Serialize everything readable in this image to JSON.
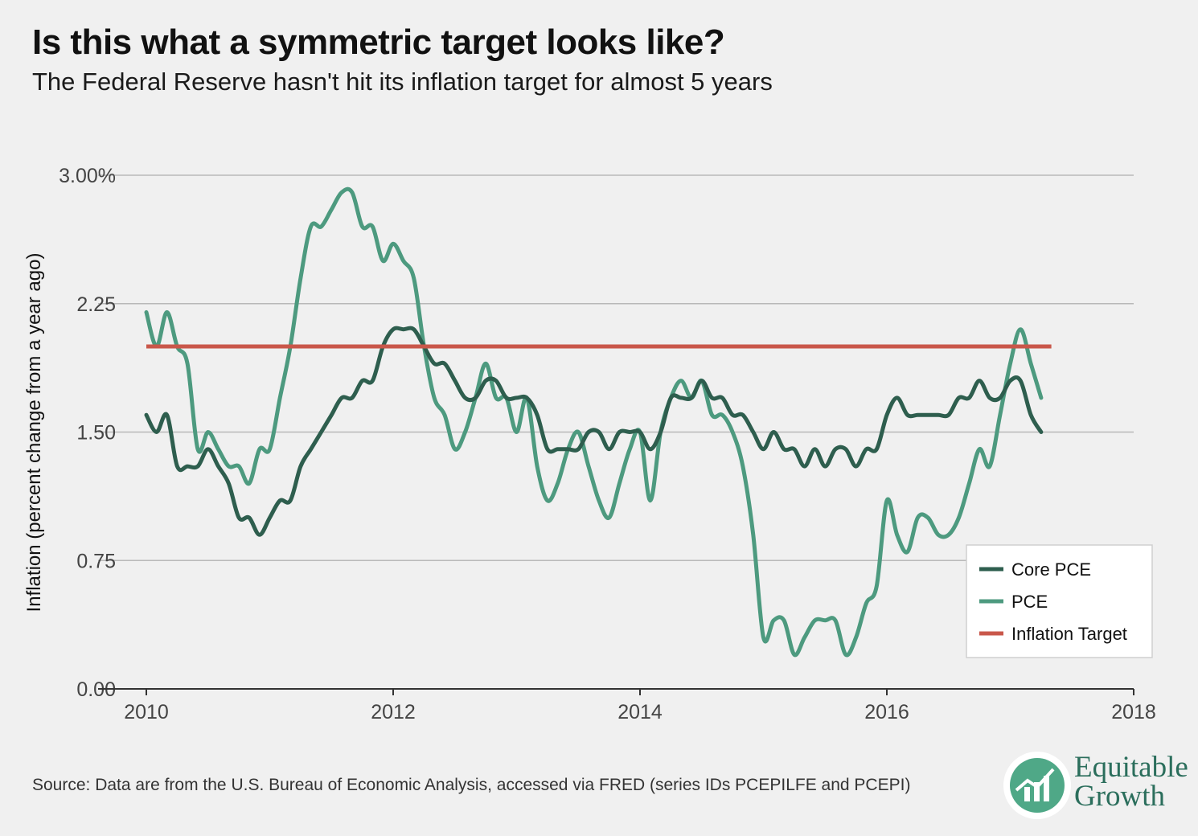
{
  "header": {
    "title": "Is this what a symmetric target looks like?",
    "subtitle": "The Federal Reserve hasn't hit its inflation target for almost 5 years"
  },
  "footer": {
    "source": "Source: Data are from the U.S. Bureau of Economic Analysis, accessed via FRED (series IDs PCEPILFE and PCEPI)"
  },
  "logo": {
    "line1": "Equitable",
    "line2": "Growth",
    "colors": {
      "circle": "#4fa887",
      "bars": "#ffffff"
    }
  },
  "chart_data": {
    "type": "line",
    "title": "Is this what a symmetric target looks like?",
    "subtitle": "The Federal Reserve hasn't hit its inflation target for almost 5 years",
    "xlabel": "",
    "ylabel": "Inflation (percent change from a year ago)",
    "xlim": [
      2010,
      2018
    ],
    "ylim": [
      0,
      3
    ],
    "x_ticks": [
      2010,
      2012,
      2014,
      2016,
      2018
    ],
    "x_tick_labels": [
      "2010",
      "2012",
      "2014",
      "2016",
      "2018"
    ],
    "y_ticks": [
      0,
      0.75,
      1.5,
      2.25,
      3.0
    ],
    "y_tick_labels": [
      "0.00",
      "0.75",
      "1.50",
      "2.25",
      "3.00%"
    ],
    "grid": "horizontal",
    "legend_position": "bottom-right",
    "series": [
      {
        "name": "Core PCE",
        "color": "#2e5e4e",
        "x": [
          2010.0,
          2010.083,
          2010.167,
          2010.25,
          2010.333,
          2010.417,
          2010.5,
          2010.583,
          2010.667,
          2010.75,
          2010.833,
          2010.917,
          2011.0,
          2011.083,
          2011.167,
          2011.25,
          2011.333,
          2011.417,
          2011.5,
          2011.583,
          2011.667,
          2011.75,
          2011.833,
          2011.917,
          2012.0,
          2012.083,
          2012.167,
          2012.25,
          2012.333,
          2012.417,
          2012.5,
          2012.583,
          2012.667,
          2012.75,
          2012.833,
          2012.917,
          2013.0,
          2013.083,
          2013.167,
          2013.25,
          2013.333,
          2013.417,
          2013.5,
          2013.583,
          2013.667,
          2013.75,
          2013.833,
          2013.917,
          2014.0,
          2014.083,
          2014.167,
          2014.25,
          2014.333,
          2014.417,
          2014.5,
          2014.583,
          2014.667,
          2014.75,
          2014.833,
          2014.917,
          2015.0,
          2015.083,
          2015.167,
          2015.25,
          2015.333,
          2015.417,
          2015.5,
          2015.583,
          2015.667,
          2015.75,
          2015.833,
          2015.917,
          2016.0,
          2016.083,
          2016.167,
          2016.25,
          2016.333,
          2016.417,
          2016.5,
          2016.583,
          2016.667,
          2016.75,
          2016.833,
          2016.917,
          2017.0,
          2017.083,
          2017.167,
          2017.25
        ],
        "values": [
          1.6,
          1.5,
          1.6,
          1.3,
          1.3,
          1.3,
          1.4,
          1.3,
          1.2,
          1.0,
          1.0,
          0.9,
          1.0,
          1.1,
          1.1,
          1.3,
          1.4,
          1.5,
          1.6,
          1.7,
          1.7,
          1.8,
          1.8,
          2.0,
          2.1,
          2.1,
          2.1,
          2.0,
          1.9,
          1.9,
          1.8,
          1.7,
          1.7,
          1.8,
          1.8,
          1.7,
          1.7,
          1.7,
          1.6,
          1.4,
          1.4,
          1.4,
          1.4,
          1.5,
          1.5,
          1.4,
          1.5,
          1.5,
          1.5,
          1.4,
          1.5,
          1.7,
          1.7,
          1.7,
          1.8,
          1.7,
          1.7,
          1.6,
          1.6,
          1.5,
          1.4,
          1.5,
          1.4,
          1.4,
          1.3,
          1.4,
          1.3,
          1.4,
          1.4,
          1.3,
          1.4,
          1.4,
          1.6,
          1.7,
          1.6,
          1.6,
          1.6,
          1.6,
          1.6,
          1.7,
          1.7,
          1.8,
          1.7,
          1.7,
          1.8,
          1.8,
          1.6,
          1.5
        ]
      },
      {
        "name": "PCE",
        "color": "#4d9a7f",
        "x": [
          2010.0,
          2010.083,
          2010.167,
          2010.25,
          2010.333,
          2010.417,
          2010.5,
          2010.583,
          2010.667,
          2010.75,
          2010.833,
          2010.917,
          2011.0,
          2011.083,
          2011.167,
          2011.25,
          2011.333,
          2011.417,
          2011.5,
          2011.583,
          2011.667,
          2011.75,
          2011.833,
          2011.917,
          2012.0,
          2012.083,
          2012.167,
          2012.25,
          2012.333,
          2012.417,
          2012.5,
          2012.583,
          2012.667,
          2012.75,
          2012.833,
          2012.917,
          2013.0,
          2013.083,
          2013.167,
          2013.25,
          2013.333,
          2013.417,
          2013.5,
          2013.583,
          2013.667,
          2013.75,
          2013.833,
          2013.917,
          2014.0,
          2014.083,
          2014.167,
          2014.25,
          2014.333,
          2014.417,
          2014.5,
          2014.583,
          2014.667,
          2014.75,
          2014.833,
          2014.917,
          2015.0,
          2015.083,
          2015.167,
          2015.25,
          2015.333,
          2015.417,
          2015.5,
          2015.583,
          2015.667,
          2015.75,
          2015.833,
          2015.917,
          2016.0,
          2016.083,
          2016.167,
          2016.25,
          2016.333,
          2016.417,
          2016.5,
          2016.583,
          2016.667,
          2016.75,
          2016.833,
          2016.917,
          2017.0,
          2017.083,
          2017.167,
          2017.25
        ],
        "values": [
          2.2,
          2.0,
          2.2,
          2.0,
          1.9,
          1.4,
          1.5,
          1.4,
          1.3,
          1.3,
          1.2,
          1.4,
          1.4,
          1.7,
          2.0,
          2.4,
          2.7,
          2.7,
          2.8,
          2.9,
          2.9,
          2.7,
          2.7,
          2.5,
          2.6,
          2.5,
          2.4,
          2.0,
          1.7,
          1.6,
          1.4,
          1.5,
          1.7,
          1.9,
          1.7,
          1.7,
          1.5,
          1.7,
          1.3,
          1.1,
          1.2,
          1.4,
          1.5,
          1.3,
          1.1,
          1.0,
          1.2,
          1.4,
          1.5,
          1.1,
          1.5,
          1.7,
          1.8,
          1.7,
          1.8,
          1.6,
          1.6,
          1.5,
          1.3,
          0.9,
          0.3,
          0.4,
          0.4,
          0.2,
          0.3,
          0.4,
          0.4,
          0.4,
          0.2,
          0.3,
          0.5,
          0.6,
          1.1,
          0.9,
          0.8,
          1.0,
          1.0,
          0.9,
          0.9,
          1.0,
          1.2,
          1.4,
          1.3,
          1.6,
          1.9,
          2.1,
          1.9,
          1.7
        ]
      },
      {
        "name": "Inflation Target",
        "color": "#c9574a",
        "x": [
          2010.0,
          2017.333
        ],
        "values": [
          2.0,
          2.0
        ]
      }
    ]
  }
}
